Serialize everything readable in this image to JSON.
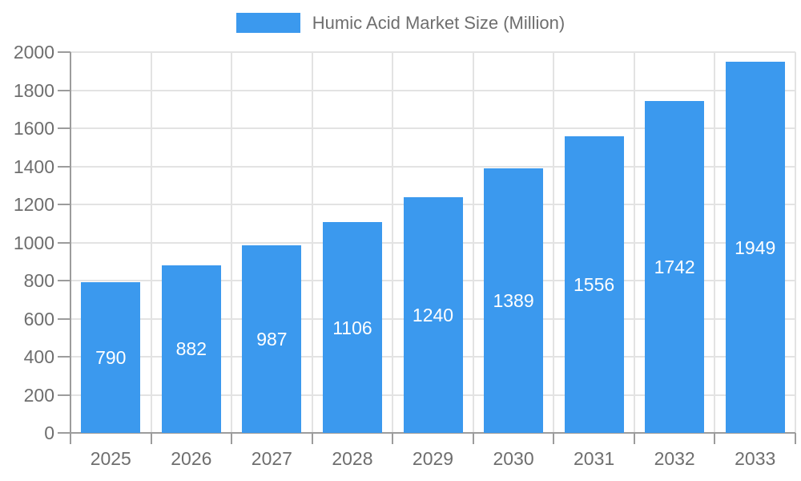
{
  "chart_data": {
    "type": "bar",
    "title": "Humic Acid Market Size (Million)",
    "legend": {
      "position": "top",
      "items": [
        {
          "label": "Humic Acid Market Size (Million)",
          "color": "#3b99ee"
        }
      ]
    },
    "categories": [
      "2025",
      "2026",
      "2027",
      "2028",
      "2029",
      "2030",
      "2031",
      "2032",
      "2033"
    ],
    "series": [
      {
        "name": "Humic Acid Market Size (Million)",
        "color": "#3b99ee",
        "values": [
          790,
          882,
          987,
          1106,
          1240,
          1389,
          1556,
          1742,
          1949
        ]
      }
    ],
    "xlabel": "",
    "ylabel": "",
    "ylim": [
      0,
      2000
    ],
    "yticks": [
      0,
      200,
      400,
      600,
      800,
      1000,
      1200,
      1400,
      1600,
      1800,
      2000
    ],
    "grid": true,
    "value_labels": {
      "show": true,
      "position": "center",
      "color": "#ffffff"
    },
    "colors": {
      "bar": "#3b99ee",
      "value_label": "#ffffff",
      "axis_text": "#6e6e6e",
      "axis_line": "#9c9c9c",
      "grid_line": "#e3e3e3",
      "background": "#ffffff"
    }
  }
}
